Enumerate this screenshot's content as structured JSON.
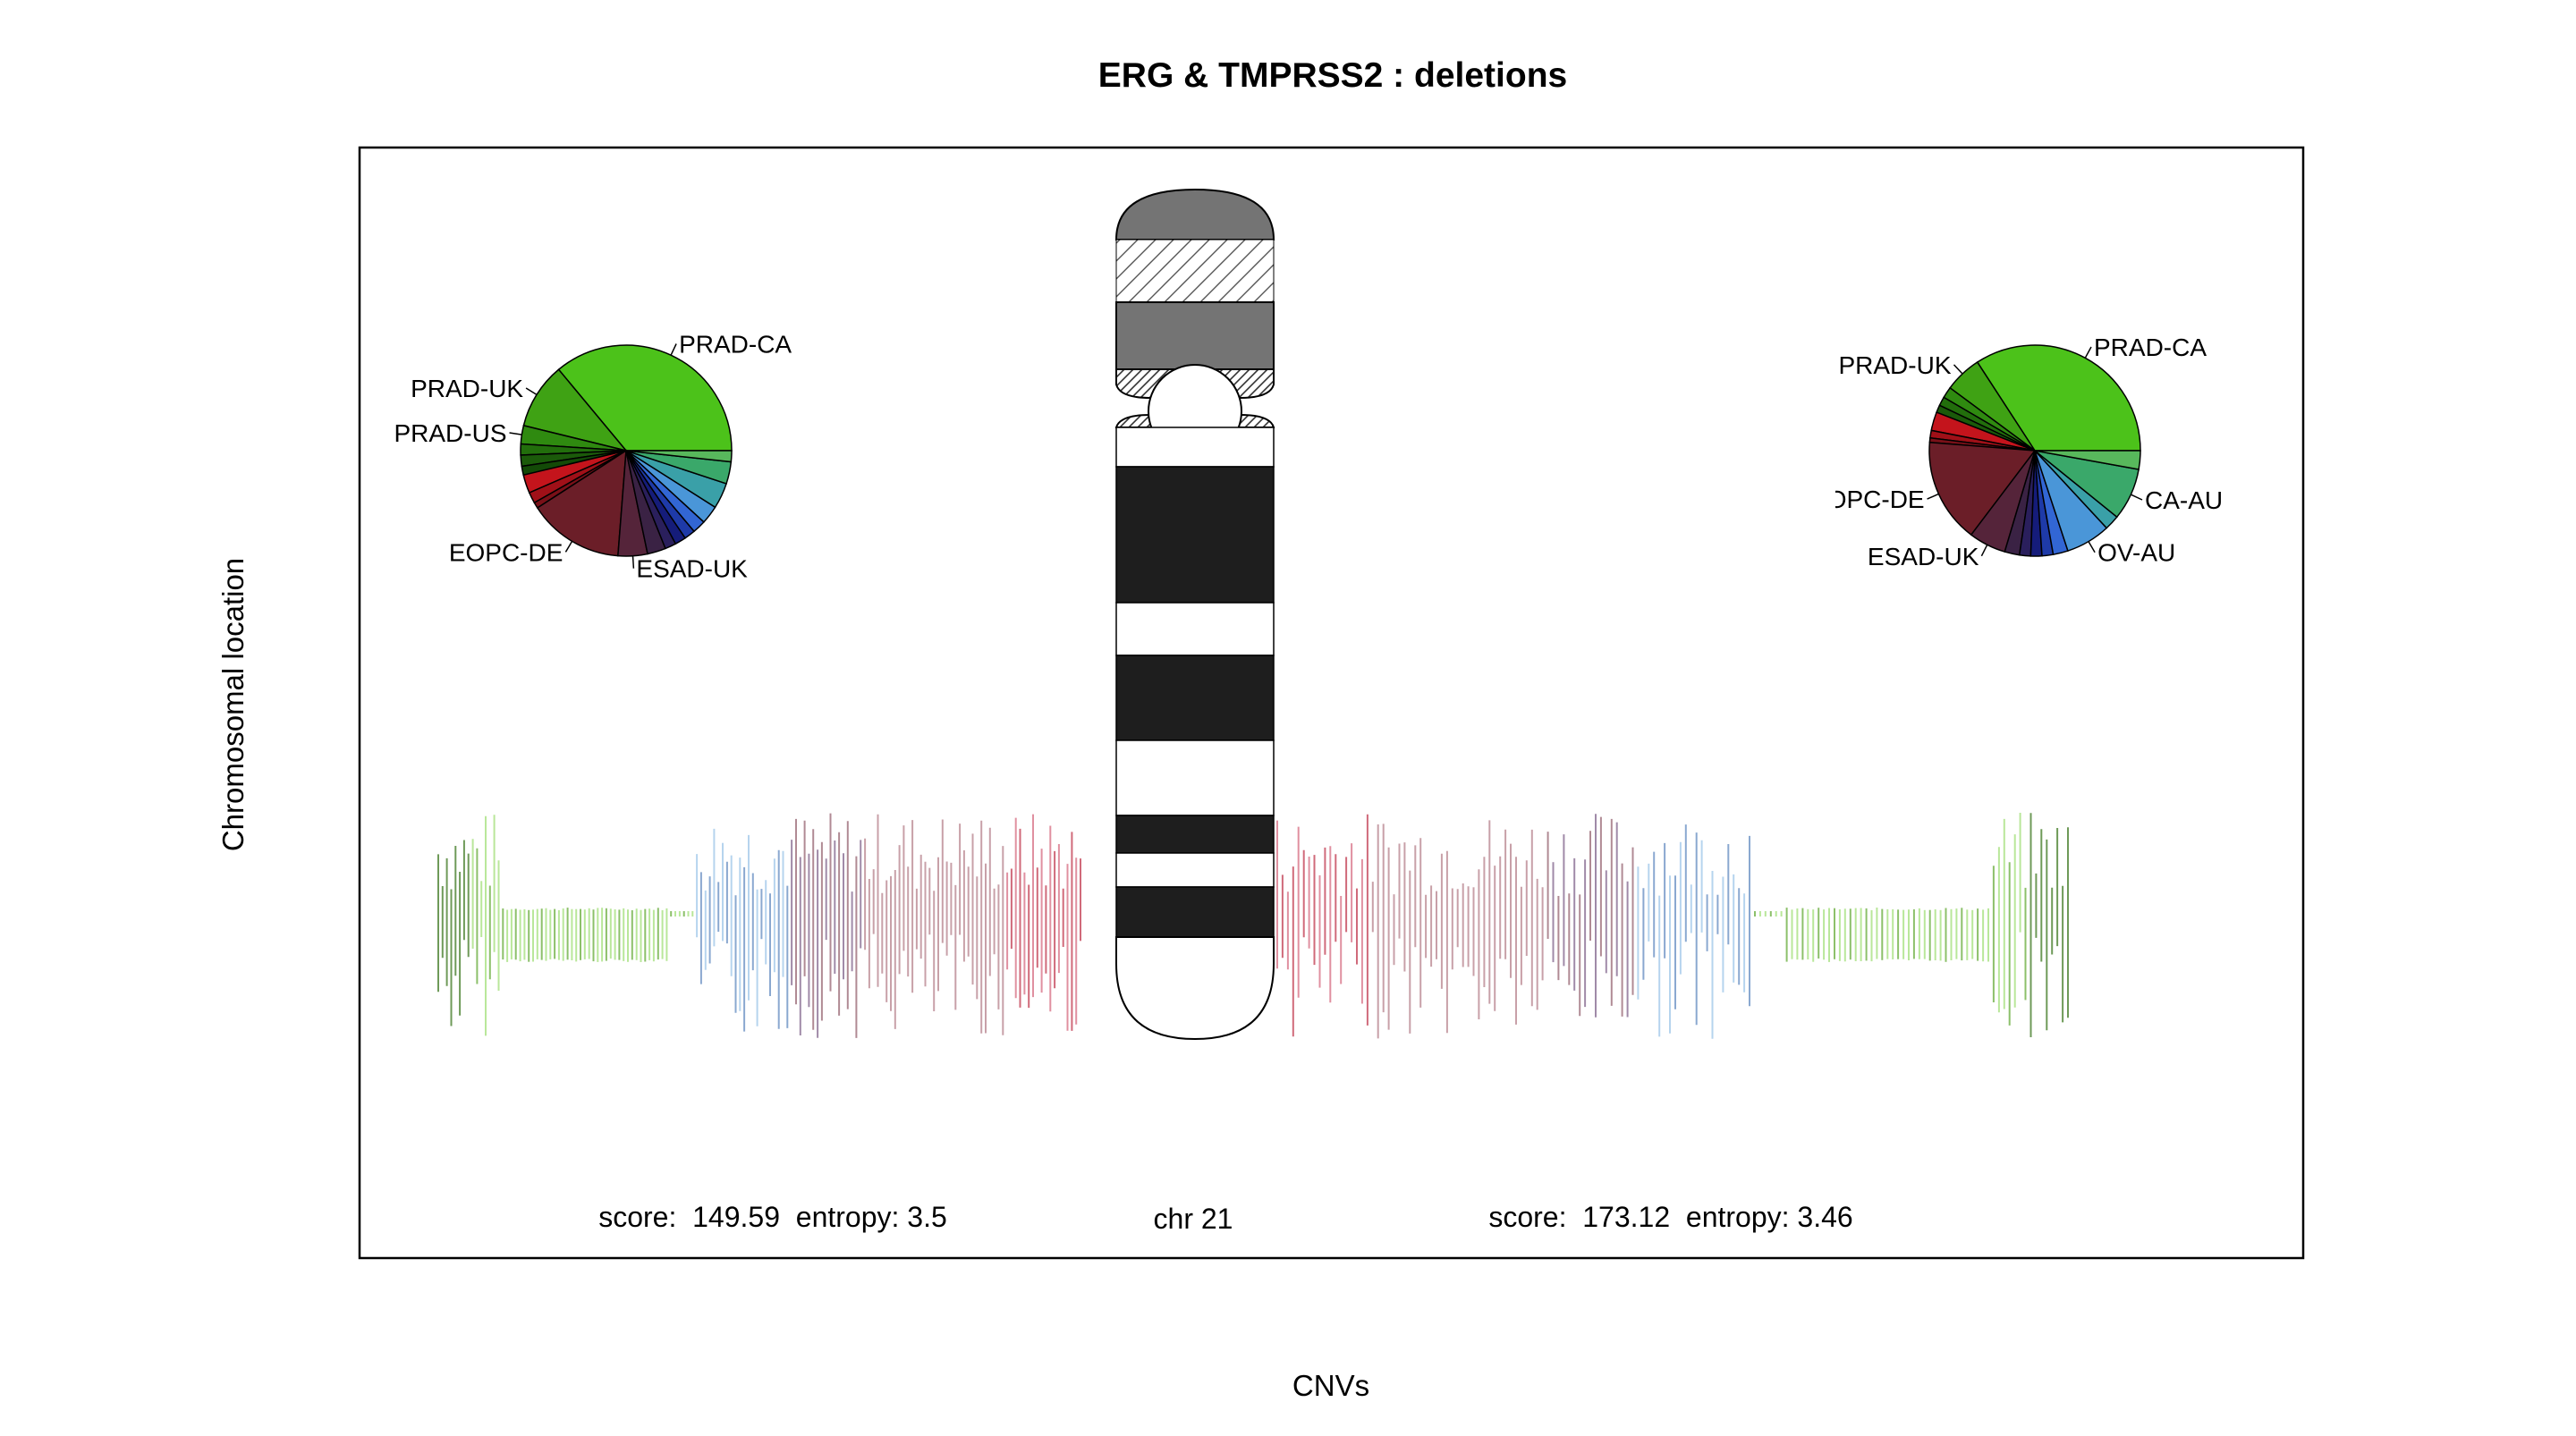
{
  "chart_data": {
    "type": "pie",
    "title": "ERG & TMPRSS2 : deletions",
    "xlabel": "CNVs",
    "ylabel": "Chromosomal location",
    "chromosome_label": "chr 21",
    "left": {
      "score_label": "score:  149.59  entropy: 3.5",
      "score": 149.59,
      "entropy": 3.5,
      "slices": [
        {
          "label": "PRAD-CA",
          "value": 32,
          "color": "#4cc21a"
        },
        {
          "label": "PRAD-UK",
          "value": 9,
          "color": "#3fa214"
        },
        {
          "label": "PRAD-US",
          "value": 2.5,
          "color": "#2f8a10"
        },
        {
          "label": "",
          "value": 1.5,
          "color": "#226e0c"
        },
        {
          "label": "",
          "value": 1.5,
          "color": "#1b5a0a"
        },
        {
          "label": "",
          "value": 1.2,
          "color": "#134a07"
        },
        {
          "label": "",
          "value": 2.5,
          "color": "#c4141c"
        },
        {
          "label": "",
          "value": 1.5,
          "color": "#a01018"
        },
        {
          "label": "",
          "value": 0.8,
          "color": "#7a1018"
        },
        {
          "label": "EOPC-DE",
          "value": 13,
          "color": "#6b1e28"
        },
        {
          "label": "ESAD-UK",
          "value": 4,
          "color": "#55243a"
        },
        {
          "label": "",
          "value": 2.5,
          "color": "#3a2244"
        },
        {
          "label": "",
          "value": 1.5,
          "color": "#2a1f5c"
        },
        {
          "label": "",
          "value": 1.5,
          "color": "#151c7a"
        },
        {
          "label": "",
          "value": 1.5,
          "color": "#1e3aa8"
        },
        {
          "label": "",
          "value": 1.8,
          "color": "#3266d4"
        },
        {
          "label": "",
          "value": 2.5,
          "color": "#4a96d8"
        },
        {
          "label": "",
          "value": 3.5,
          "color": "#3aa0a8"
        },
        {
          "label": "",
          "value": 3,
          "color": "#3aa86a"
        },
        {
          "label": "",
          "value": 1.5,
          "color": "#58b85c"
        }
      ]
    },
    "right": {
      "score_label": "score:  173.12  entropy: 3.46",
      "score": 173.12,
      "entropy": 3.46,
      "slices": [
        {
          "label": "PRAD-CA",
          "value": 30,
          "color": "#4cc21a"
        },
        {
          "label": "PRAD-UK",
          "value": 5,
          "color": "#3fa214"
        },
        {
          "label": "",
          "value": 1.5,
          "color": "#2f8a10"
        },
        {
          "label": "",
          "value": 1.2,
          "color": "#226e0c"
        },
        {
          "label": "",
          "value": 1,
          "color": "#1b5a0a"
        },
        {
          "label": "",
          "value": 2.5,
          "color": "#c4141c"
        },
        {
          "label": "",
          "value": 1,
          "color": "#a01018"
        },
        {
          "label": "",
          "value": 0.6,
          "color": "#7a1018"
        },
        {
          "label": "EOPC-DE",
          "value": 14,
          "color": "#6b1e28"
        },
        {
          "label": "ESAD-UK",
          "value": 5,
          "color": "#55243a"
        },
        {
          "label": "",
          "value": 2,
          "color": "#3a2244"
        },
        {
          "label": "",
          "value": 1.5,
          "color": "#2a1f5c"
        },
        {
          "label": "",
          "value": 1.5,
          "color": "#151c7a"
        },
        {
          "label": "",
          "value": 1.5,
          "color": "#1e3aa8"
        },
        {
          "label": "",
          "value": 2,
          "color": "#3266d4"
        },
        {
          "label": "OV-AU",
          "value": 6,
          "color": "#4a96d8"
        },
        {
          "label": "",
          "value": 2,
          "color": "#3aa0a8"
        },
        {
          "label": "CA-AU",
          "value": 7,
          "color": "#3aa86a"
        },
        {
          "label": "",
          "value": 2.5,
          "color": "#58b85c"
        }
      ]
    },
    "chromosome_bands": [
      {
        "type": "p-ter",
        "color": "#747474"
      },
      {
        "type": "stalk",
        "color": "#ffffff"
      },
      {
        "type": "p11",
        "color": "#747474"
      },
      {
        "type": "centromere",
        "color": "#ffffff"
      },
      {
        "type": "q-band",
        "color": "#ffffff"
      },
      {
        "type": "q-band",
        "color": "#1e1e1e"
      },
      {
        "type": "q-band",
        "color": "#ffffff"
      },
      {
        "type": "q-band",
        "color": "#1e1e1e"
      },
      {
        "type": "q-band",
        "color": "#ffffff"
      },
      {
        "type": "q-band",
        "color": "#1e1e1e"
      },
      {
        "type": "q-band",
        "color": "#ffffff"
      },
      {
        "type": "q-band",
        "color": "#1e1e1e"
      },
      {
        "type": "q-ter",
        "color": "#ffffff"
      }
    ],
    "cnv_colors": [
      "#b9e79a",
      "#8cc06a",
      "#6e9a58",
      "#b6d4ee",
      "#8aa8d0",
      "#a08aa8",
      "#b08a94",
      "#c8a0a8",
      "#e090a0",
      "#d06a7a"
    ]
  }
}
